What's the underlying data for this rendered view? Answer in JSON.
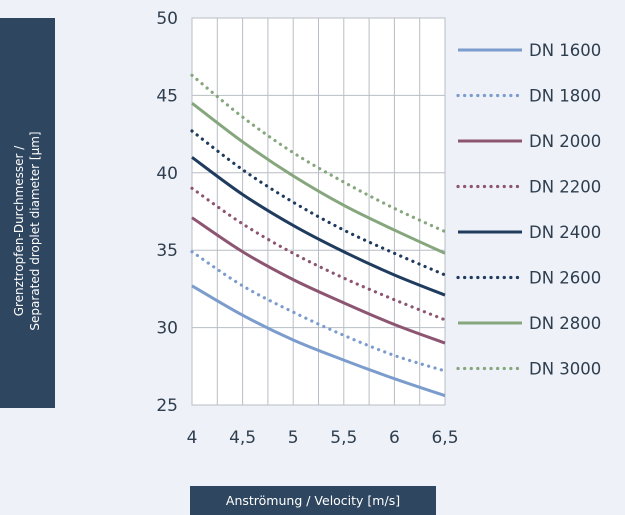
{
  "chart_data": {
    "type": "line",
    "xlabel": "Anströmung / Velocity [m/s]",
    "ylabel_line1": "Grenztropfen-Durchmesser /",
    "ylabel_line2": "Separated droplet diameter [µm]",
    "xlim": [
      4,
      6.5
    ],
    "ylim": [
      25,
      50
    ],
    "x_ticks": [
      "4",
      "4,5",
      "5",
      "5,5",
      "6",
      "6,5"
    ],
    "y_ticks": [
      "25",
      "30",
      "35",
      "40",
      "45",
      "50"
    ],
    "x": [
      4,
      4.5,
      5,
      5.5,
      6,
      6.5
    ],
    "grid": true,
    "legend_position": "right",
    "series": [
      {
        "name": "DN 1600",
        "style": "solid",
        "color": "#7b9ccc",
        "values": [
          32.7,
          30.8,
          29.2,
          27.9,
          26.7,
          25.6
        ]
      },
      {
        "name": "DN 1800",
        "style": "dotted",
        "color": "#7b9ccc",
        "values": [
          34.9,
          32.7,
          31.0,
          29.5,
          28.2,
          27.2
        ]
      },
      {
        "name": "DN 2000",
        "style": "solid",
        "color": "#8c5571",
        "values": [
          37.1,
          34.9,
          33.1,
          31.6,
          30.2,
          29.0
        ]
      },
      {
        "name": "DN 2200",
        "style": "dotted",
        "color": "#8c5571",
        "values": [
          39.0,
          36.7,
          34.8,
          33.2,
          31.8,
          30.5
        ]
      },
      {
        "name": "DN 2400",
        "style": "solid",
        "color": "#1f3b5e",
        "values": [
          41.0,
          38.6,
          36.6,
          34.9,
          33.4,
          32.1
        ]
      },
      {
        "name": "DN 2600",
        "style": "dotted",
        "color": "#1f3b5e",
        "values": [
          42.7,
          40.2,
          38.1,
          36.3,
          34.8,
          33.4
        ]
      },
      {
        "name": "DN 2800",
        "style": "solid",
        "color": "#86a67d",
        "values": [
          44.5,
          42.0,
          39.8,
          37.9,
          36.3,
          34.8
        ]
      },
      {
        "name": "DN 3000",
        "style": "dotted",
        "color": "#86a67d",
        "values": [
          46.3,
          43.6,
          41.3,
          39.4,
          37.7,
          36.2
        ]
      }
    ]
  }
}
